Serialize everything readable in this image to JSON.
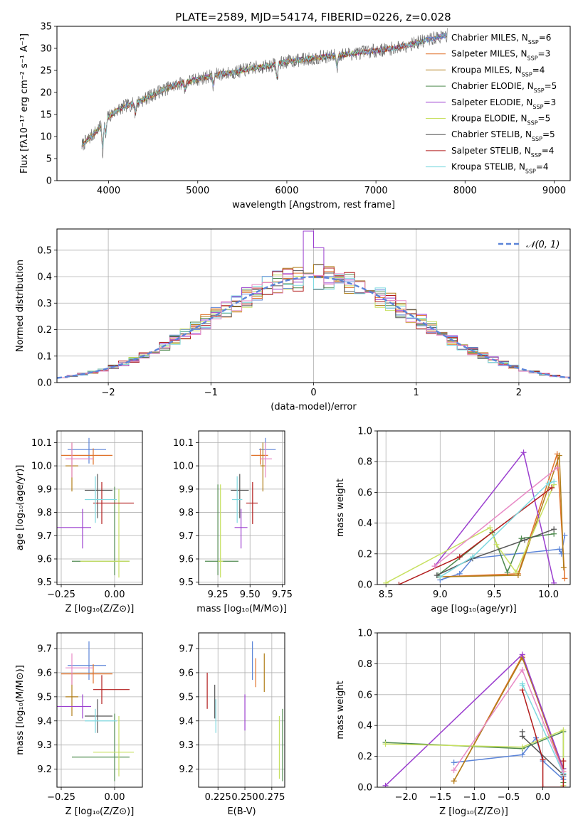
{
  "title": "PLATE=2589, MJD=54174, FIBERID=0226, z=0.028",
  "colors": {
    "series": [
      "#5b84d8",
      "#e0722a",
      "#b07d18",
      "#4f8a4f",
      "#9b3fcf",
      "#c7e060",
      "#555555",
      "#b21c1c",
      "#7fd9e0"
    ],
    "pink": "#e88ac6",
    "normal_line": "#5b84d8",
    "grid": "#b0b0b0"
  },
  "chart_data": [
    {
      "id": "spectrum",
      "type": "line",
      "title": "PLATE=2589, MJD=54174, FIBERID=0226, z=0.028",
      "xlabel": "wavelength [Angstrom, rest frame]",
      "ylabel": "Flux [fλ10⁻¹⁷ erg cm⁻² s⁻¹ A⁻¹]",
      "xlim": [
        3420,
        9180
      ],
      "ylim": [
        0,
        35
      ],
      "xticks": [
        4000,
        5000,
        6000,
        7000,
        8000,
        9000
      ],
      "yticks": [
        0,
        5,
        10,
        15,
        20,
        25,
        30,
        35
      ],
      "grid": false,
      "legend_position": "top-right",
      "legend": [
        "Chabrier MILES, N_SSP=6",
        "Salpeter MILES, N_SSP=3",
        "Kroupa MILES, N_SSP=4",
        "Chabrier ELODIE, N_SSP=5",
        "Salpeter ELODIE, N_SSP=3",
        "Kroupa ELODIE, N_SSP=5",
        "Chabrier STELIB, N_SSP=5",
        "Salpeter STELIB, N_SSP=4",
        "Kroupa STELIB, N_SSP=4"
      ],
      "continuum": {
        "x": [
          3700,
          3800,
          3900,
          4000,
          4100,
          4200,
          4300,
          4400,
          4500,
          4600,
          4800,
          5000,
          5200,
          5400,
          5600,
          5800,
          6000,
          6200,
          6400,
          6600,
          6800,
          7000,
          7200,
          7400,
          7600,
          7800
        ],
        "y": [
          8,
          10,
          12,
          14.5,
          16,
          17,
          17.5,
          18.5,
          19.5,
          20.5,
          22,
          23,
          24,
          24.5,
          25.5,
          26,
          27,
          27.5,
          28,
          28.5,
          29,
          29.5,
          30,
          31,
          32,
          33
        ]
      },
      "absorption_features": [
        {
          "x": 3934,
          "depth": 7
        },
        {
          "x": 3969,
          "depth": 4
        },
        {
          "x": 4300,
          "depth": 2.5
        },
        {
          "x": 4861,
          "depth": 2
        },
        {
          "x": 5175,
          "depth": 3
        },
        {
          "x": 5890,
          "depth": 4.5
        },
        {
          "x": 6563,
          "depth": 3.5
        }
      ],
      "artifacts": [
        {
          "series": "Kroupa ELODIE",
          "x": 6800,
          "drop_to": 0
        },
        {
          "series": "Salpeter STELIB",
          "x": 7420,
          "drop_to": 0
        }
      ],
      "model_end_x": [
        7800,
        7800,
        7800,
        6800,
        7800,
        6800,
        7800,
        7420,
        7800
      ]
    },
    {
      "id": "residuals",
      "type": "histogram",
      "xlabel": "(data-model)/error",
      "ylabel": "Normed distribution",
      "xlim": [
        -2.5,
        2.5
      ],
      "ylim": [
        0,
        0.58
      ],
      "xticks": [
        -2,
        -1,
        0,
        1,
        2
      ],
      "yticks": [
        0.0,
        0.1,
        0.2,
        0.3,
        0.4,
        0.5
      ],
      "grid": true,
      "legend_position": "top-right",
      "legend": [
        "𝒩(0, 1)"
      ],
      "bin_width": 0.1,
      "peak_bump": 0.16,
      "reference_curve": "standard normal pdf"
    },
    {
      "id": "Z_age",
      "type": "errorbar",
      "xlabel": "Z [log₁₀(Z/Z⊙)]",
      "ylabel": "age  [log₁₀(age/yr)]",
      "xlim": [
        -0.27,
        0.13
      ],
      "ylim": [
        9.49,
        10.15
      ],
      "xticks": [
        -0.25,
        0.0
      ],
      "xticklabels": [
        "−0.25",
        "0.00"
      ],
      "yticks": [
        9.5,
        9.6,
        9.7,
        9.8,
        9.9,
        10.0,
        10.1
      ],
      "grid": true,
      "points": [
        {
          "x": -0.12,
          "xerr": [
            0.1,
            0.08
          ],
          "y": 10.07,
          "yerr": [
            0.06,
            0.05
          ]
        },
        {
          "x": -0.1,
          "xerr": [
            0.15,
            0.09
          ],
          "y": 10.045,
          "yerr": [
            0.04,
            0.03
          ]
        },
        {
          "x": -0.2,
          "xerr": [
            0.03,
            0.03
          ],
          "y": 10.0,
          "yerr": [
            0.11,
            0.1
          ]
        },
        {
          "x": 0.0,
          "xerr": [
            0.2,
            0.07
          ],
          "y": 9.59,
          "yerr": [
            0.06,
            0.32
          ]
        },
        {
          "x": -0.15,
          "xerr": [
            0.12,
            0.04
          ],
          "y": 9.735,
          "yerr": [
            0.09,
            0.08
          ]
        },
        {
          "x": 0.02,
          "xerr": [
            0.18,
            0.05
          ],
          "y": 9.59,
          "yerr": [
            0.07,
            0.31
          ]
        },
        {
          "x": -0.08,
          "xerr": [
            0.06,
            0.07
          ],
          "y": 9.895,
          "yerr": [
            0.12,
            0.07
          ]
        },
        {
          "x": -0.06,
          "xerr": [
            0.04,
            0.15
          ],
          "y": 9.84,
          "yerr": [
            0.09,
            0.09
          ]
        },
        {
          "x": -0.09,
          "xerr": [
            0.05,
            0.1
          ],
          "y": 9.855,
          "yerr": [
            0.1,
            0.1
          ]
        },
        {
          "x": -0.2,
          "xerr": [
            0.03,
            0.1
          ],
          "y": 10.03,
          "yerr": [
            0.08,
            0.07
          ],
          "color": "pink"
        }
      ]
    },
    {
      "id": "mass_age",
      "type": "errorbar",
      "xlabel": "mass [log₁₀(M/M⊙)]",
      "ylabel": "",
      "xlim": [
        9.1,
        9.77
      ],
      "ylim": [
        9.49,
        10.15
      ],
      "xticks": [
        9.25,
        9.5,
        9.75
      ],
      "yticks": [
        9.5,
        9.6,
        9.7,
        9.8,
        9.9,
        10.0,
        10.1
      ],
      "grid": true,
      "points": [
        {
          "x": 9.62,
          "xerr": [
            0.05,
            0.08
          ],
          "y": 10.07,
          "yerr": [
            0.06,
            0.05
          ]
        },
        {
          "x": 9.58,
          "xerr": [
            0.07,
            0.06
          ],
          "y": 10.045,
          "yerr": [
            0.04,
            0.03
          ]
        },
        {
          "x": 9.6,
          "xerr": [
            0.02,
            0.02
          ],
          "y": 10.0,
          "yerr": [
            0.11,
            0.1
          ]
        },
        {
          "x": 9.25,
          "xerr": [
            0.1,
            0.16
          ],
          "y": 9.59,
          "yerr": [
            0.06,
            0.33
          ]
        },
        {
          "x": 9.43,
          "xerr": [
            0.05,
            0.05
          ],
          "y": 9.735,
          "yerr": [
            0.09,
            0.08
          ]
        },
        {
          "x": 9.27,
          "xerr": [
            0.02,
            0.02
          ],
          "y": 9.59,
          "yerr": [
            0.07,
            0.33
          ]
        },
        {
          "x": 9.42,
          "xerr": [
            0.07,
            0.07
          ],
          "y": 9.895,
          "yerr": [
            0.12,
            0.07
          ]
        },
        {
          "x": 9.52,
          "xerr": [
            0.05,
            0.04
          ],
          "y": 9.84,
          "yerr": [
            0.09,
            0.09
          ]
        },
        {
          "x": 9.4,
          "xerr": [
            0.04,
            0.04
          ],
          "y": 9.855,
          "yerr": [
            0.1,
            0.1
          ]
        },
        {
          "x": 9.62,
          "xerr": [
            0.04,
            0.05
          ],
          "y": 10.03,
          "yerr": [
            0.08,
            0.07
          ],
          "color": "pink"
        }
      ]
    },
    {
      "id": "age_weight",
      "type": "line",
      "xlabel": "age  [log₁₀(age/yr)]",
      "ylabel": "mass weight",
      "xlim": [
        8.42,
        10.2
      ],
      "ylim": [
        0,
        1
      ],
      "xticks": [
        8.5,
        9.0,
        9.5,
        10.0
      ],
      "yticks": [
        0.0,
        0.2,
        0.4,
        0.6,
        0.8,
        1.0
      ],
      "grid": true,
      "series": [
        {
          "name": "Chabrier MILES",
          "x": [
            9.0,
            9.18,
            9.3,
            10.1,
            10.12,
            10.15
          ],
          "y": [
            0.03,
            0.07,
            0.17,
            0.23,
            0.2,
            0.32
          ]
        },
        {
          "name": "Salpeter MILES",
          "x": [
            9.0,
            9.72,
            10.08,
            10.15
          ],
          "y": [
            0.05,
            0.07,
            0.85,
            0.04
          ]
        },
        {
          "name": "Kroupa MILES",
          "x": [
            9.0,
            9.72,
            10.1,
            10.14
          ],
          "y": [
            0.05,
            0.06,
            0.84,
            0.11
          ]
        },
        {
          "name": "Chabrier ELODIE",
          "x": [
            8.98,
            9.48,
            9.62,
            9.75,
            10.05
          ],
          "y": [
            0.06,
            0.34,
            0.08,
            0.3,
            0.33
          ]
        },
        {
          "name": "Salpeter ELODIE",
          "x": [
            8.95,
            9.77,
            10.05
          ],
          "y": [
            0.12,
            0.86,
            0.01
          ]
        },
        {
          "name": "Kroupa ELODIE",
          "x": [
            8.5,
            9.46,
            9.52,
            9.7,
            10.05
          ],
          "y": [
            0.01,
            0.37,
            0.26,
            0.08,
            0.65
          ]
        },
        {
          "name": "Chabrier STELIB",
          "x": [
            8.97,
            9.3,
            9.78,
            10.05
          ],
          "y": [
            0.06,
            0.17,
            0.29,
            0.36
          ]
        },
        {
          "name": "Salpeter STELIB",
          "x": [
            8.62,
            9.18,
            10.03
          ],
          "y": [
            0.0,
            0.18,
            0.63
          ]
        },
        {
          "name": "Kroupa STELIB",
          "x": [
            9.0,
            9.3,
            10.0,
            10.05
          ],
          "y": [
            0.05,
            0.18,
            0.66,
            0.67
          ]
        },
        {
          "name": "",
          "x": [
            8.95,
            10.08
          ],
          "y": [
            0.12,
            0.76
          ],
          "color": "pink"
        }
      ]
    },
    {
      "id": "Z_mass",
      "type": "errorbar",
      "xlabel": "Z [log₁₀(Z/Z⊙)]",
      "ylabel": "mass [log₁₀(M/M⊙)]",
      "xlim": [
        -0.27,
        0.13
      ],
      "ylim": [
        9.125,
        9.765
      ],
      "xticks": [
        -0.25,
        0.0
      ],
      "xticklabels": [
        "−0.25",
        "0.00"
      ],
      "yticks": [
        9.2,
        9.3,
        9.4,
        9.5,
        9.6,
        9.7
      ],
      "grid": true,
      "points": [
        {
          "x": -0.12,
          "xerr": [
            0.1,
            0.08
          ],
          "y": 9.63,
          "yerr": [
            0.06,
            0.1
          ]
        },
        {
          "x": -0.1,
          "xerr": [
            0.15,
            0.09
          ],
          "y": 9.595,
          "yerr": [
            0.04,
            0.04
          ]
        },
        {
          "x": -0.2,
          "xerr": [
            0.03,
            0.03
          ],
          "y": 9.5,
          "yerr": [
            0.08,
            0.1
          ]
        },
        {
          "x": 0.0,
          "xerr": [
            0.2,
            0.07
          ],
          "y": 9.25,
          "yerr": [
            0.1,
            0.18
          ]
        },
        {
          "x": -0.15,
          "xerr": [
            0.12,
            0.04
          ],
          "y": 9.46,
          "yerr": [
            0.05,
            0.05
          ]
        },
        {
          "x": 0.02,
          "xerr": [
            0.12,
            0.07
          ],
          "y": 9.27,
          "yerr": [
            0.1,
            0.15
          ]
        },
        {
          "x": -0.08,
          "xerr": [
            0.06,
            0.07
          ],
          "y": 9.42,
          "yerr": [
            0.07,
            0.07
          ]
        },
        {
          "x": -0.06,
          "xerr": [
            0.04,
            0.13
          ],
          "y": 9.53,
          "yerr": [
            0.06,
            0.06
          ]
        },
        {
          "x": -0.09,
          "xerr": [
            0.05,
            0.1
          ],
          "y": 9.4,
          "yerr": [
            0.05,
            0.05
          ]
        },
        {
          "x": -0.2,
          "xerr": [
            0.03,
            0.1
          ],
          "y": 9.62,
          "yerr": [
            0.07,
            0.06
          ],
          "color": "pink"
        }
      ]
    },
    {
      "id": "ebv_mass",
      "type": "errorbar",
      "xlabel": "E(B-V)",
      "ylabel": "",
      "xlim": [
        0.207,
        0.287
      ],
      "ylim": [
        9.125,
        9.765
      ],
      "xticks": [
        0.225,
        0.25,
        0.275
      ],
      "xticklabels": [
        "0.225",
        "0.250",
        "0.275"
      ],
      "yticks": [
        9.2,
        9.3,
        9.4,
        9.5,
        9.6,
        9.7
      ],
      "grid": true,
      "points": [
        {
          "x": 0.257,
          "xerr": [
            0,
            0
          ],
          "y": 9.63,
          "yerr": [
            0.06,
            0.1
          ]
        },
        {
          "x": 0.26,
          "xerr": [
            0,
            0
          ],
          "y": 9.6,
          "yerr": [
            0.06,
            0.06
          ]
        },
        {
          "x": 0.268,
          "xerr": [
            0,
            0
          ],
          "y": 9.6,
          "yerr": [
            0.08,
            0.08
          ]
        },
        {
          "x": 0.285,
          "xerr": [
            0,
            0
          ],
          "y": 9.3,
          "yerr": [
            0.15,
            0.15
          ]
        },
        {
          "x": 0.25,
          "xerr": [
            0,
            0
          ],
          "y": 9.43,
          "yerr": [
            0.07,
            0.08
          ]
        },
        {
          "x": 0.282,
          "xerr": [
            0,
            0
          ],
          "y": 9.29,
          "yerr": [
            0.13,
            0.13
          ]
        },
        {
          "x": 0.222,
          "xerr": [
            0,
            0
          ],
          "y": 9.48,
          "yerr": [
            0.07,
            0.07
          ]
        },
        {
          "x": 0.215,
          "xerr": [
            0,
            0
          ],
          "y": 9.52,
          "yerr": [
            0.07,
            0.08
          ]
        },
        {
          "x": 0.223,
          "xerr": [
            0,
            0
          ],
          "y": 9.43,
          "yerr": [
            0.08,
            0.06
          ]
        }
      ]
    },
    {
      "id": "Z_weight",
      "type": "line",
      "xlabel": "Z [log₁₀(Z/Z⊙)]",
      "ylabel": "mass weight",
      "xlim": [
        -2.42,
        0.4
      ],
      "ylim": [
        0,
        1
      ],
      "xticks": [
        -2.0,
        -1.5,
        -1.0,
        -0.5,
        0.0
      ],
      "xticklabels": [
        "−2.0",
        "−1.5",
        "−1.0",
        "−0.5",
        "0.0"
      ],
      "yticks": [
        0.0,
        0.2,
        0.4,
        0.6,
        0.8,
        1.0
      ],
      "grid": true,
      "series": [
        {
          "name": "Chabrier MILES",
          "x": [
            -1.3,
            -0.3,
            -0.1,
            0.0,
            0.3,
            0.3
          ],
          "y": [
            0.16,
            0.21,
            0.32,
            0.17,
            0.05,
            0.07
          ]
        },
        {
          "name": "Salpeter MILES",
          "x": [
            -1.3,
            -0.3,
            0.3
          ],
          "y": [
            0.04,
            0.85,
            0.1
          ]
        },
        {
          "name": "Kroupa MILES",
          "x": [
            -1.3,
            -0.3,
            0.3
          ],
          "y": [
            0.04,
            0.84,
            0.12
          ]
        },
        {
          "name": "Chabrier ELODIE",
          "x": [
            -2.3,
            -0.3,
            0.3,
            0.3
          ],
          "y": [
            0.29,
            0.25,
            0.36,
            0.03
          ]
        },
        {
          "name": "Salpeter ELODIE",
          "x": [
            -2.3,
            -0.3,
            0.3
          ],
          "y": [
            0.01,
            0.86,
            0.12
          ]
        },
        {
          "name": "Kroupa ELODIE",
          "x": [
            -2.3,
            -0.3,
            0.3,
            0.3
          ],
          "y": [
            0.28,
            0.26,
            0.37,
            0.01
          ]
        },
        {
          "name": "Chabrier STELIB",
          "x": [
            -0.3,
            -0.3,
            0.3
          ],
          "y": [
            0.36,
            0.33,
            0.08
          ]
        },
        {
          "name": "Salpeter STELIB",
          "x": [
            -0.3,
            0.0,
            0.0,
            0.3,
            0.3
          ],
          "y": [
            0.63,
            0.18,
            0.0,
            0.0,
            0.17
          ]
        },
        {
          "name": "Kroupa STELIB",
          "x": [
            -0.3,
            -0.3,
            0.3
          ],
          "y": [
            0.66,
            0.67,
            0.09
          ]
        },
        {
          "name": "",
          "x": [
            -1.3,
            -0.3,
            0.3
          ],
          "y": [
            0.11,
            0.76,
            0.1
          ],
          "color": "pink"
        }
      ]
    }
  ]
}
